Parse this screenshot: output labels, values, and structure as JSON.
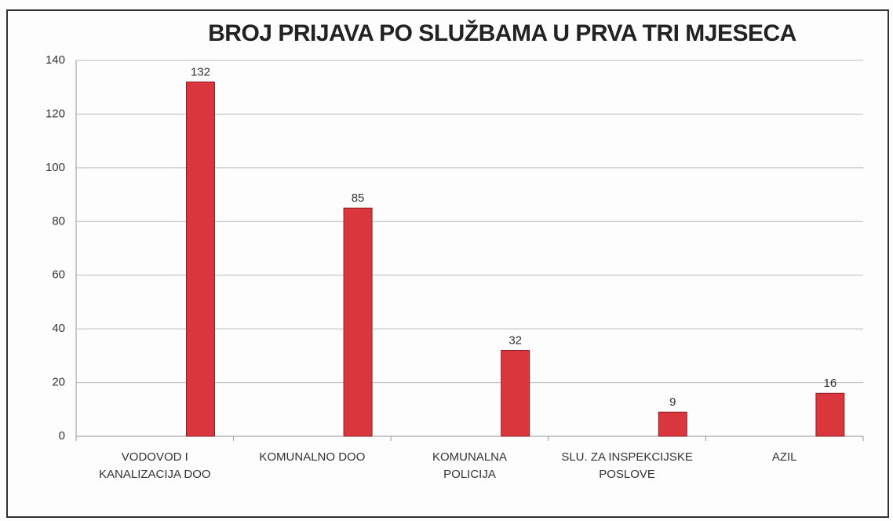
{
  "chart_data": {
    "type": "bar",
    "title": "BROJ PRIJAVA PO SLUŽBAMA U PRVA TRI MJESECA",
    "categories": [
      "VODOVOD I\nKANALIZACIJA DOO",
      "KOMUNALNO DOO",
      "KOMUNALNA\nPOLICIJA",
      "SLU. ZA INSPEKCIJSKE\nPOSLOVE",
      "AZIL"
    ],
    "values": [
      132,
      85,
      32,
      9,
      16
    ],
    "color": "#d9363e",
    "ylim": [
      0,
      140
    ],
    "yticks": [
      0,
      20,
      40,
      60,
      80,
      100,
      120,
      140
    ],
    "grid": true
  }
}
